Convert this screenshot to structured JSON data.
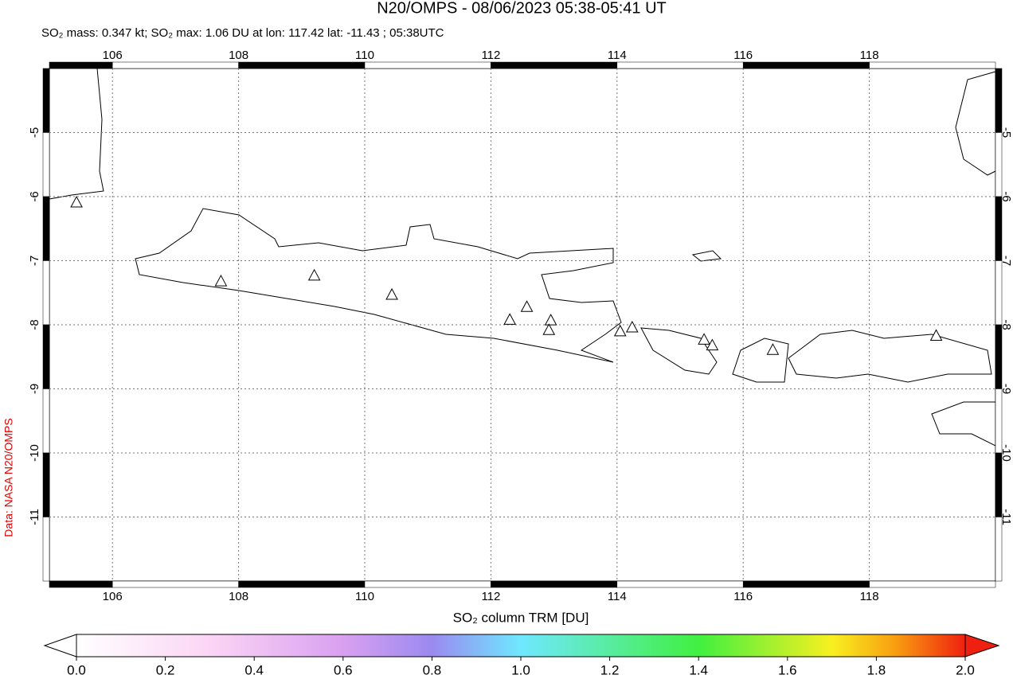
{
  "chart_data": {
    "type": "map",
    "title": "N20/OMPS - 08/06/2023 05:38-05:41 UT",
    "subtitle": "SO₂ mass: 0.347 kt; SO₂ max: 1.06 DU at lon: 117.42 lat: -11.43 ; 05:38UTC",
    "side_note": "Data: NASA N20/OMPS",
    "xlim": [
      105,
      120
    ],
    "ylim": [
      -12,
      -4
    ],
    "xticks": [
      106,
      108,
      110,
      112,
      114,
      116,
      118
    ],
    "yticks": [
      -5,
      -6,
      -7,
      -8,
      -9,
      -10,
      -11
    ],
    "grid": true,
    "volcanoes": {
      "x": [
        105.43,
        107.72,
        109.2,
        110.43,
        112.3,
        112.57,
        112.95,
        112.92,
        114.05,
        114.24,
        115.38,
        115.51,
        116.47,
        119.06
      ],
      "y": [
        -6.1,
        -7.33,
        -7.24,
        -7.54,
        -7.93,
        -7.73,
        -7.94,
        -8.09,
        -8.11,
        -8.05,
        -8.24,
        -8.33,
        -8.4,
        -8.18
      ]
    },
    "colorbar": {
      "label": "SO₂ column TRM [DU]",
      "lim": [
        0,
        2
      ],
      "ticks": [
        {
          "value": 0,
          "label": "0.0"
        },
        {
          "value": 0.2,
          "label": "0.2"
        },
        {
          "value": 0.4,
          "label": "0.4"
        },
        {
          "value": 0.6,
          "label": "0.6"
        },
        {
          "value": 0.8,
          "label": "0.8"
        },
        {
          "value": 1,
          "label": "1.0"
        },
        {
          "value": 1.2,
          "label": "1.2"
        },
        {
          "value": 1.4,
          "label": "1.4"
        },
        {
          "value": 1.6,
          "label": "1.6"
        },
        {
          "value": 1.8,
          "label": "1.8"
        },
        {
          "value": 2,
          "label": "2.0"
        }
      ]
    }
  }
}
